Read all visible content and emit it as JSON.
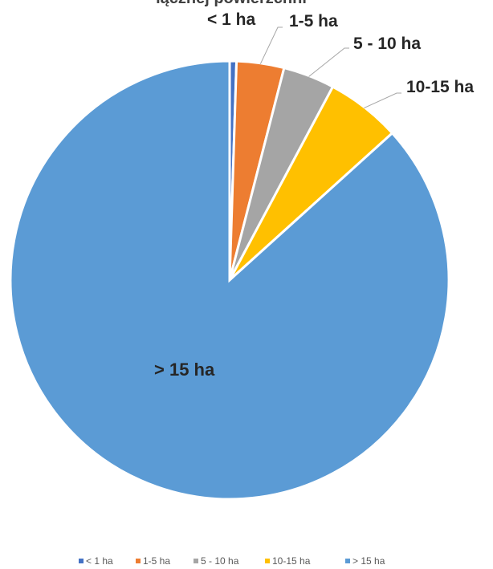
{
  "chart_data": {
    "type": "pie",
    "title": "łącznej powierzchni",
    "categories": [
      "< 1 ha",
      "1-5 ha",
      "5 - 10 ha",
      "10-15 ha",
      "> 15 ha"
    ],
    "values": [
      0.5,
      3.5,
      3.8,
      5.5,
      86.7
    ],
    "colors": [
      "#4472C4",
      "#ED7D31",
      "#A5A5A5",
      "#FFC000",
      "#5B9BD5"
    ],
    "legend_position": "bottom"
  }
}
